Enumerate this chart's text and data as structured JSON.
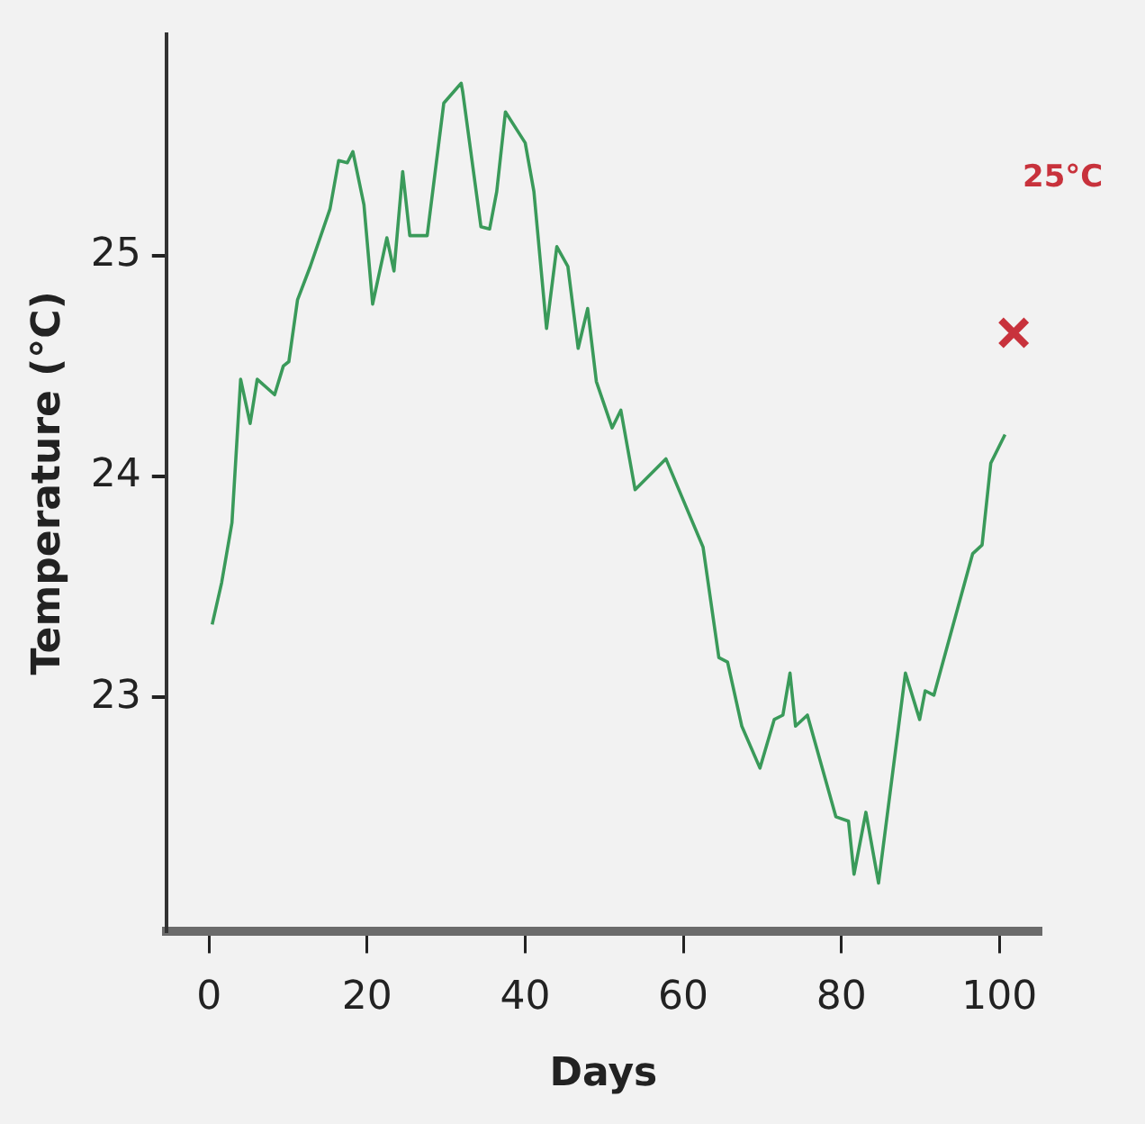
{
  "chart_data": {
    "type": "line",
    "xlabel": "Days",
    "ylabel": "Temperature (°C)",
    "xlim": [
      -5.4,
      105.2
    ],
    "xticks": [
      0,
      20,
      40,
      60,
      80,
      100
    ],
    "ylim": [
      21.94,
      26.0
    ],
    "yticks": [
      23,
      24,
      25
    ],
    "grid": false,
    "legend": false,
    "series": [
      {
        "color": "#3a9a5a",
        "marker": "none",
        "line_style": "solid",
        "x": [
          0.4,
          1.6,
          2.9,
          4.0,
          5.2,
          6.1,
          8.3,
          9.4,
          10.1,
          11.2,
          12.8,
          15.3,
          16.4,
          17.5,
          18.2,
          19.6,
          20.7,
          22.5,
          23.4,
          24.5,
          25.4,
          27.6,
          29.7,
          31.9,
          32.1,
          34.4,
          35.5,
          36.4,
          37.5,
          40.0,
          41.1,
          42.7,
          44.0,
          45.4,
          46.7,
          47.9,
          49.0,
          51.0,
          52.1,
          53.9,
          57.8,
          62.5,
          64.5,
          65.6,
          67.4,
          69.7,
          71.5,
          72.6,
          73.5,
          74.2,
          75.7,
          79.3,
          80.9,
          81.6,
          83.1,
          84.7,
          88.1,
          89.9,
          90.6,
          91.7,
          96.6,
          97.8,
          98.9,
          100.7
        ],
        "values": [
          23.33,
          23.52,
          23.79,
          24.44,
          24.24,
          24.44,
          24.37,
          24.5,
          24.52,
          24.8,
          24.95,
          25.21,
          25.43,
          25.42,
          25.47,
          25.23,
          24.78,
          25.08,
          24.93,
          25.38,
          25.09,
          25.09,
          25.69,
          25.78,
          25.74,
          25.13,
          25.12,
          25.29,
          25.65,
          25.51,
          25.29,
          24.67,
          25.04,
          24.95,
          24.58,
          24.76,
          24.43,
          24.22,
          24.3,
          23.94,
          24.08,
          23.68,
          23.18,
          23.16,
          22.87,
          22.68,
          22.9,
          22.92,
          23.11,
          22.87,
          22.92,
          22.46,
          22.44,
          22.2,
          22.48,
          22.16,
          23.11,
          22.9,
          23.03,
          23.01,
          23.65,
          23.69,
          24.06,
          24.19
        ]
      },
      {
        "type": "scatter",
        "color": "#c8323c",
        "marker": "cross",
        "x": [
          101.8
        ],
        "values": [
          24.65
        ]
      }
    ],
    "annotations": [
      "25°C"
    ]
  }
}
